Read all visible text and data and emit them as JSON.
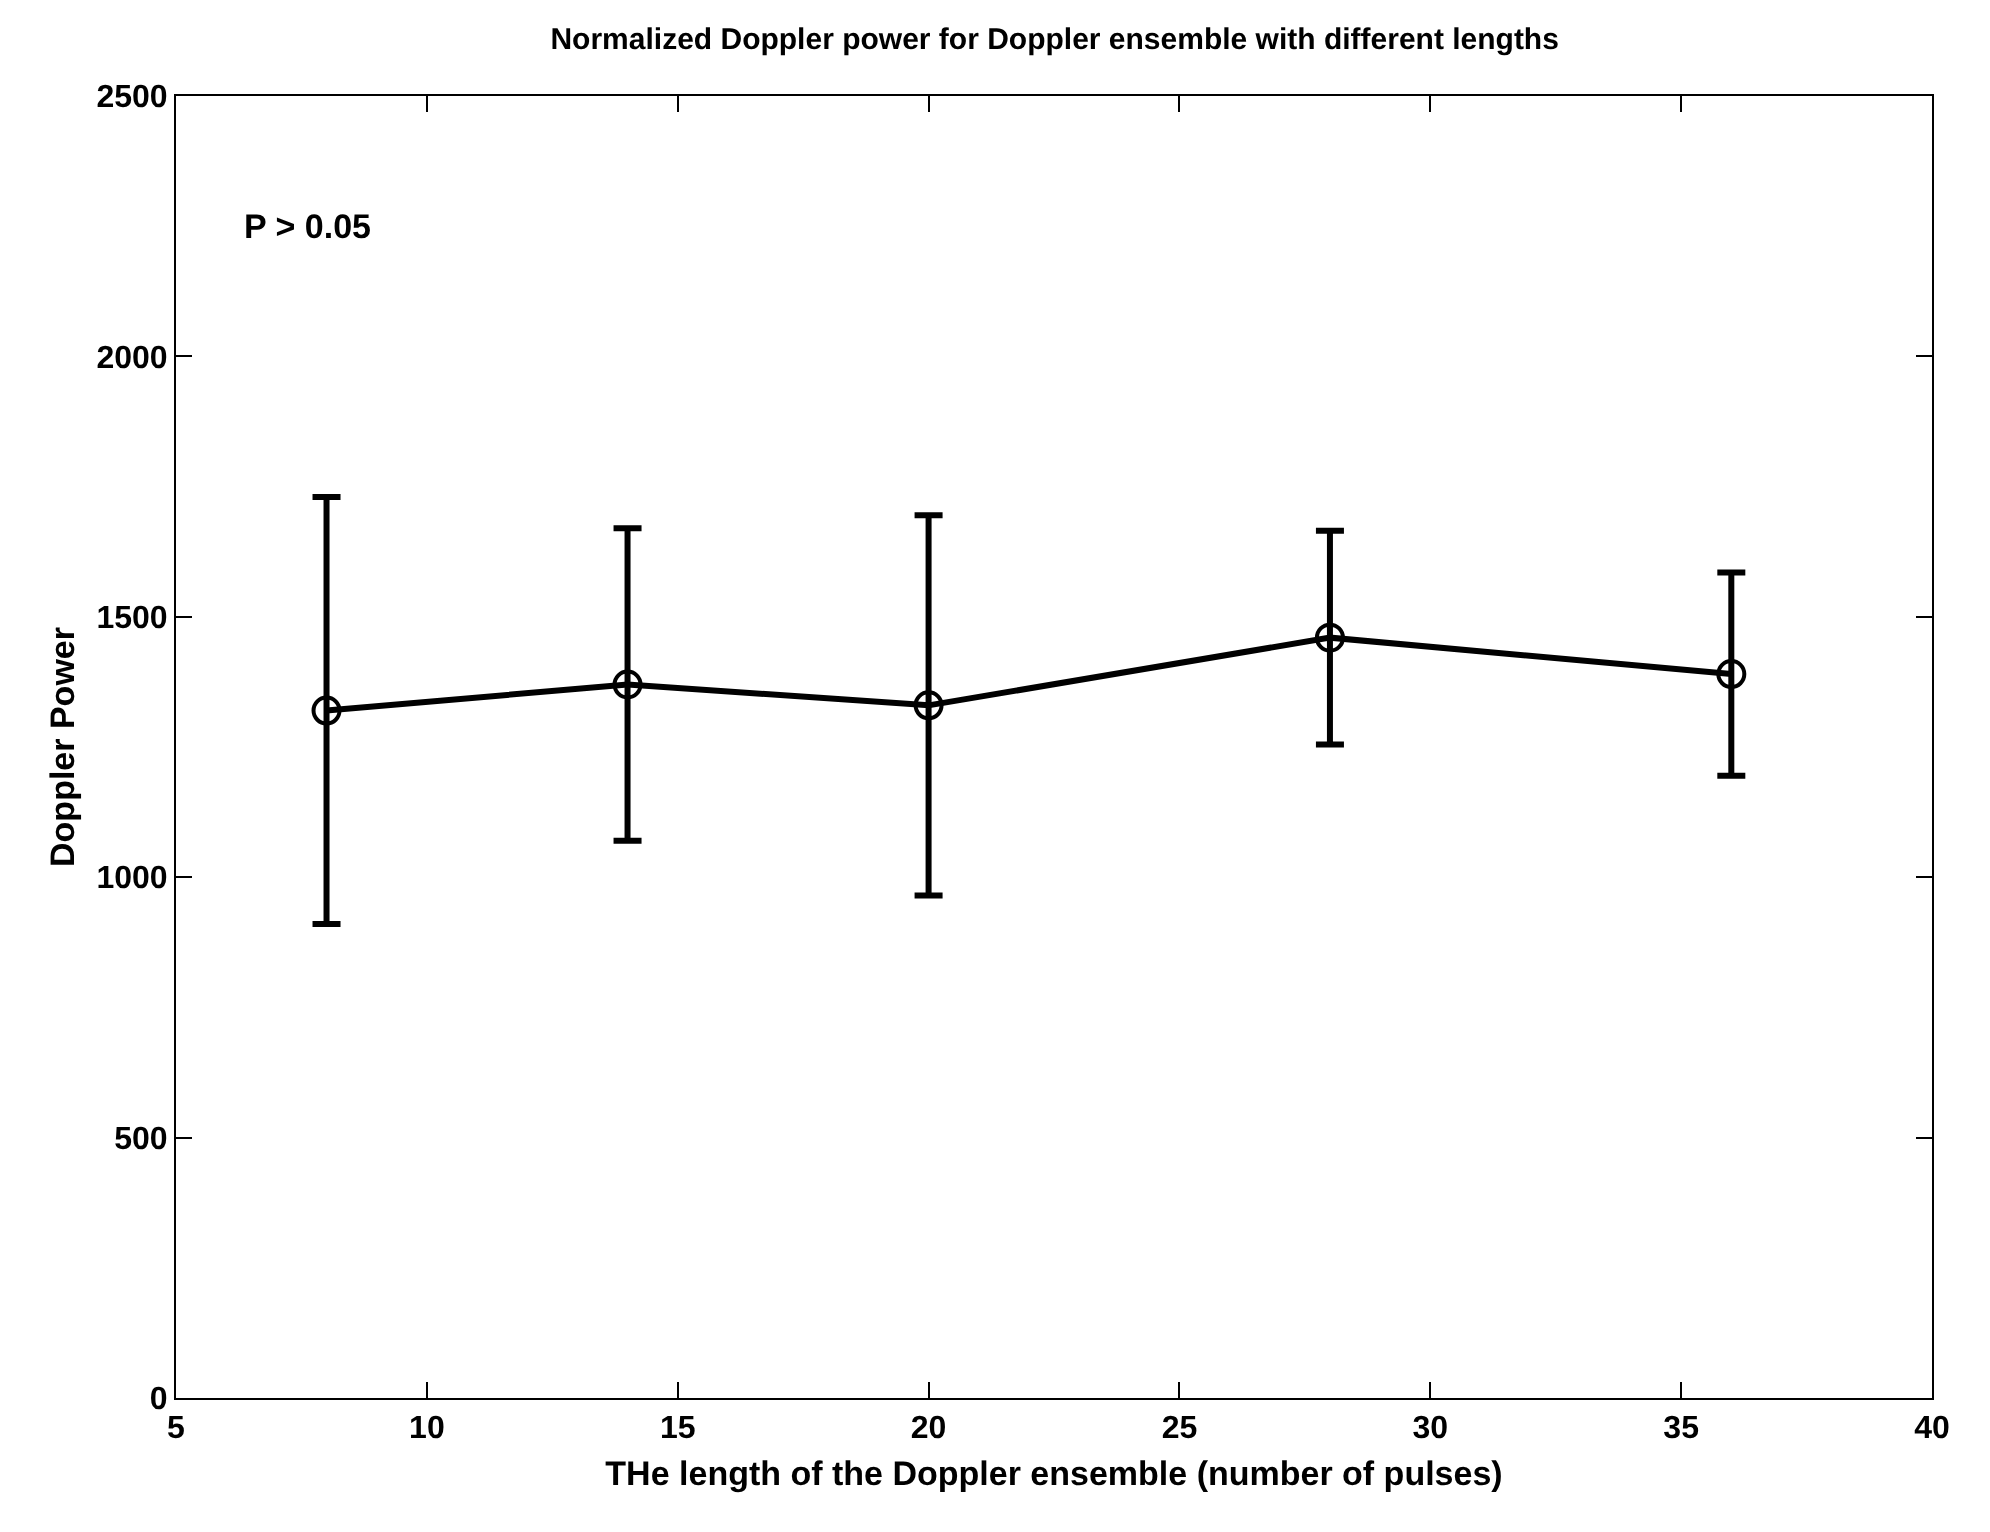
{
  "chart_data": {
    "type": "line",
    "title": "Normalized Doppler power for Doppler ensemble with different lengths",
    "xlabel": "THe length of the Doppler ensemble (number of pulses)",
    "ylabel": "Doppler Power",
    "annotations": [
      "P > 0.05"
    ],
    "x": [
      8,
      14,
      20,
      28,
      36
    ],
    "values": [
      1320,
      1370,
      1330,
      1460,
      1390
    ],
    "errors": [
      410,
      300,
      365,
      205,
      195
    ],
    "color": "#000000",
    "xlim": [
      5,
      40
    ],
    "ylim": [
      0,
      2500
    ],
    "xticks": [
      5,
      10,
      15,
      20,
      25,
      30,
      35,
      40
    ],
    "yticks": [
      0,
      500,
      1000,
      1500,
      2000,
      2500
    ],
    "grid": false,
    "marker": "circle",
    "line_style": "solid"
  }
}
